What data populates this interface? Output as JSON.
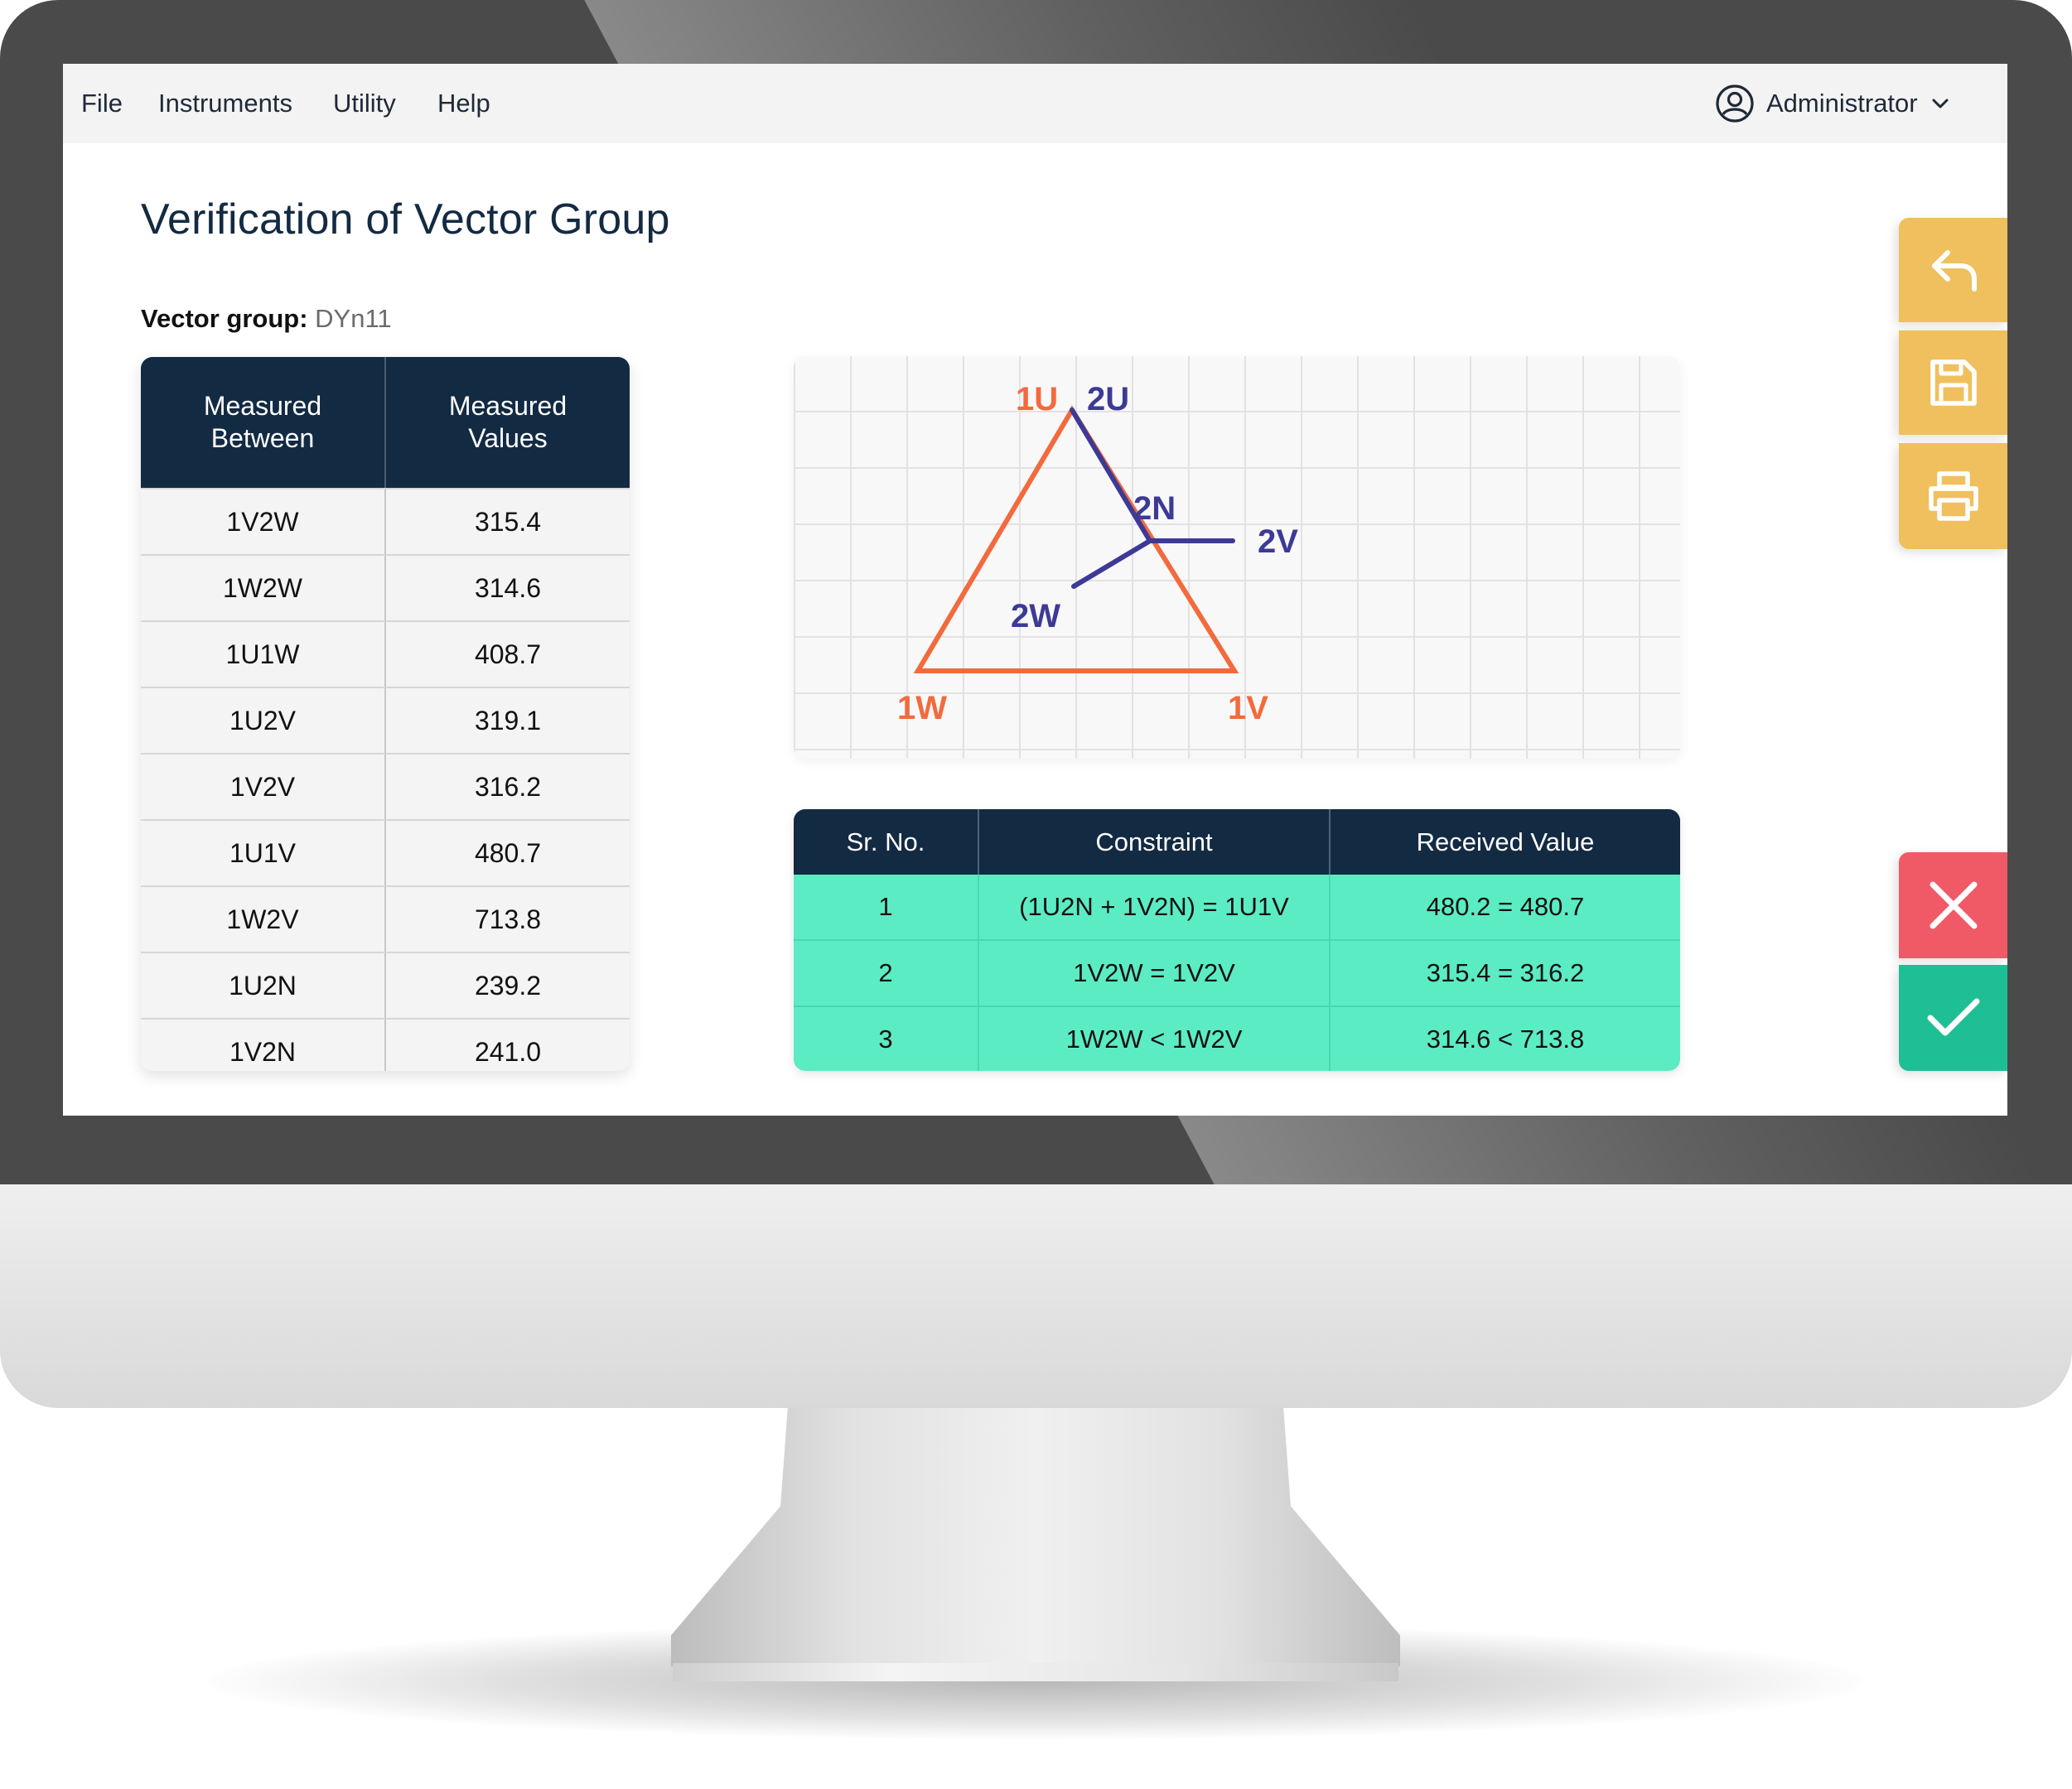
{
  "menu": {
    "file": "File",
    "instruments": "Instruments",
    "utility": "Utility",
    "help": "Help"
  },
  "user": {
    "name": "Administrator",
    "icon": "user-circle-icon"
  },
  "page": {
    "title": "Verification of Vector Group"
  },
  "vector_group": {
    "label": "Vector group:",
    "value": "DYn11"
  },
  "measured_table": {
    "headers": [
      "Measured\nBetween",
      "Measured\nValues"
    ],
    "rows": [
      [
        "1V2W",
        "315.4"
      ],
      [
        "1W2W",
        "314.6"
      ],
      [
        "1U1W",
        "408.7"
      ],
      [
        "1U2V",
        "319.1"
      ],
      [
        "1V2V",
        "316.2"
      ],
      [
        "1U1V",
        "480.7"
      ],
      [
        "1W2V",
        "713.8"
      ],
      [
        "1U2N",
        "239.2"
      ],
      [
        "1V2N",
        "241.0"
      ]
    ]
  },
  "diagram": {
    "primary_color": "#f26a3d",
    "secondary_color": "#3d3a96",
    "labels": {
      "u1": "1U",
      "v1": "1V",
      "w1": "1W",
      "u2": "2U",
      "v2": "2V",
      "w2": "2W",
      "n2": "2N"
    }
  },
  "constraints_table": {
    "headers": [
      "Sr. No.",
      "Constraint",
      "Received Value"
    ],
    "rows": [
      [
        "1",
        "(1U2N + 1V2N) = 1U1V",
        "480.2 = 480.7"
      ],
      [
        "2",
        "1V2W = 1V2V",
        "315.4 = 316.2"
      ],
      [
        "3",
        "1W2W < 1W2V",
        "314.6 < 713.8"
      ]
    ],
    "row_color": "#5cecc4"
  },
  "actions": {
    "back": "undo-arrow-icon",
    "save": "save-icon",
    "print": "printer-icon",
    "cancel": "close-icon",
    "confirm": "checkmark-icon"
  },
  "colors": {
    "header_navy": "#132a43",
    "action_yellow": "#f0c05e",
    "cancel_red": "#ef5a66",
    "confirm_green": "#1fbf96"
  }
}
